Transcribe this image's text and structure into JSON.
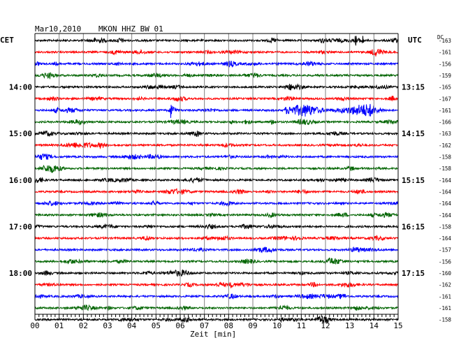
{
  "header": {
    "date": "Mar10,2010",
    "station": "MKON HHZ BW 01",
    "left_zone": "CET",
    "right_zone": "UTC",
    "dc_label": "DC"
  },
  "colors": {
    "black": "#000000",
    "red": "#ff0000",
    "blue": "#0000ff",
    "green": "#006400",
    "grid": "#808080"
  },
  "chart_data": {
    "type": "line",
    "title": "Mar10,2010   MKON HHZ BW 01",
    "xlabel": "Zeit [min]",
    "ylabel": "",
    "xlim": [
      0,
      15
    ],
    "x_ticks": [
      "00",
      "01",
      "02",
      "03",
      "04",
      "05",
      "06",
      "07",
      "08",
      "09",
      "10",
      "11",
      "12",
      "13",
      "14",
      "15"
    ],
    "left_hour_labels": [
      {
        "label": "14:00",
        "row": 4
      },
      {
        "label": "15:00",
        "row": 8
      },
      {
        "label": "16:00",
        "row": 12
      },
      {
        "label": "17:00",
        "row": 16
      },
      {
        "label": "18:00",
        "row": 20
      }
    ],
    "right_hour_labels": [
      {
        "label": "13:15",
        "row": 4
      },
      {
        "label": "14:15",
        "row": 8
      },
      {
        "label": "15:15",
        "row": 12
      },
      {
        "label": "16:15",
        "row": 16
      },
      {
        "label": "17:15",
        "row": 20
      }
    ],
    "color_cycle": [
      "black",
      "red",
      "blue",
      "green"
    ],
    "dc_offsets": [
      -163,
      -161,
      -156,
      -159,
      -165,
      -167,
      -161,
      -166,
      -163,
      -162,
      -158,
      -158,
      -164,
      -164,
      -164,
      -164,
      -158,
      -164,
      -157,
      -156,
      -160,
      -162,
      -161,
      -161,
      -158
    ],
    "events": [
      {
        "row": 0,
        "start_min": 13.2,
        "end_min": 13.6,
        "amplitude": "moderate"
      },
      {
        "row": 6,
        "start_min": 5.6,
        "end_min": 6.0,
        "amplitude": "large"
      },
      {
        "row": 6,
        "start_min": 10.3,
        "end_min": 14.0,
        "amplitude": "moderate"
      }
    ],
    "grid": true
  }
}
